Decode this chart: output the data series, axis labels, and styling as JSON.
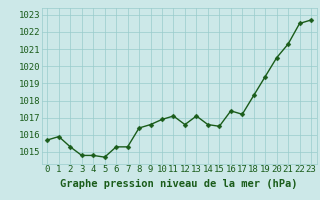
{
  "x": [
    0,
    1,
    2,
    3,
    4,
    5,
    6,
    7,
    8,
    9,
    10,
    11,
    12,
    13,
    14,
    15,
    16,
    17,
    18,
    19,
    20,
    21,
    22,
    23
  ],
  "y": [
    1015.7,
    1015.9,
    1015.3,
    1014.8,
    1014.8,
    1014.7,
    1015.3,
    1015.3,
    1016.4,
    1016.6,
    1016.9,
    1017.1,
    1016.6,
    1017.1,
    1016.6,
    1016.5,
    1017.4,
    1017.2,
    1018.3,
    1019.4,
    1020.5,
    1021.3,
    1022.5,
    1022.7
  ],
  "ylim": [
    1014.3,
    1023.4
  ],
  "yticks": [
    1015,
    1016,
    1017,
    1018,
    1019,
    1020,
    1021,
    1022,
    1023
  ],
  "xticks": [
    0,
    1,
    2,
    3,
    4,
    5,
    6,
    7,
    8,
    9,
    10,
    11,
    12,
    13,
    14,
    15,
    16,
    17,
    18,
    19,
    20,
    21,
    22,
    23
  ],
  "line_color": "#1a5c1a",
  "marker_color": "#1a5c1a",
  "bg_color": "#cce8e8",
  "grid_color": "#99cccc",
  "xlabel": "Graphe pression niveau de la mer (hPa)",
  "xlabel_color": "#1a5c1a",
  "tick_label_color": "#1a5c1a",
  "xlabel_fontsize": 7.5,
  "tick_fontsize": 6.5,
  "line_width": 1.0,
  "marker_size": 2.5
}
